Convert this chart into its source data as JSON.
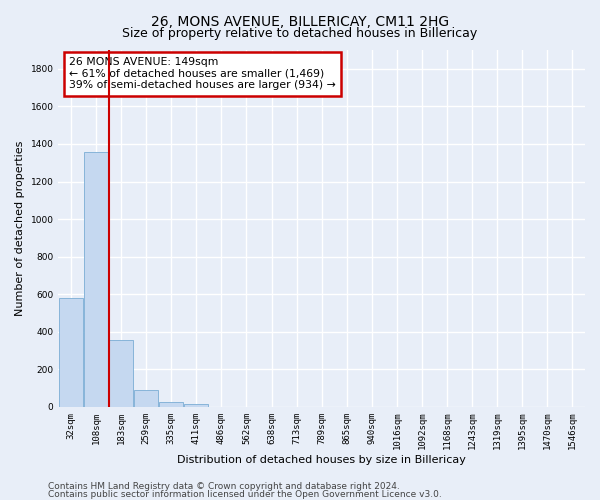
{
  "title": "26, MONS AVENUE, BILLERICAY, CM11 2HG",
  "subtitle": "Size of property relative to detached houses in Billericay",
  "xlabel": "Distribution of detached houses by size in Billericay",
  "ylabel": "Number of detached properties",
  "categories": [
    "32sqm",
    "108sqm",
    "183sqm",
    "259sqm",
    "335sqm",
    "411sqm",
    "486sqm",
    "562sqm",
    "638sqm",
    "713sqm",
    "789sqm",
    "865sqm",
    "940sqm",
    "1016sqm",
    "1092sqm",
    "1168sqm",
    "1243sqm",
    "1319sqm",
    "1395sqm",
    "1470sqm",
    "1546sqm"
  ],
  "values": [
    580,
    1355,
    355,
    90,
    28,
    18,
    0,
    0,
    0,
    0,
    0,
    0,
    0,
    0,
    0,
    0,
    0,
    0,
    0,
    0,
    0
  ],
  "bar_color": "#c5d8f0",
  "bar_edge_color": "#7aadd4",
  "vline_x": 1.5,
  "vline_color": "#cc0000",
  "annotation_text": "26 MONS AVENUE: 149sqm\n← 61% of detached houses are smaller (1,469)\n39% of semi-detached houses are larger (934) →",
  "annotation_box_color": "#ffffff",
  "annotation_box_edge": "#cc0000",
  "ylim": [
    0,
    1900
  ],
  "yticks": [
    0,
    200,
    400,
    600,
    800,
    1000,
    1200,
    1400,
    1600,
    1800
  ],
  "footer1": "Contains HM Land Registry data © Crown copyright and database right 2024.",
  "footer2": "Contains public sector information licensed under the Open Government Licence v3.0.",
  "bg_color": "#e8eef8",
  "grid_color": "#ffffff",
  "title_fontsize": 10,
  "axis_label_fontsize": 8,
  "tick_fontsize": 6.5,
  "footer_fontsize": 6.5
}
